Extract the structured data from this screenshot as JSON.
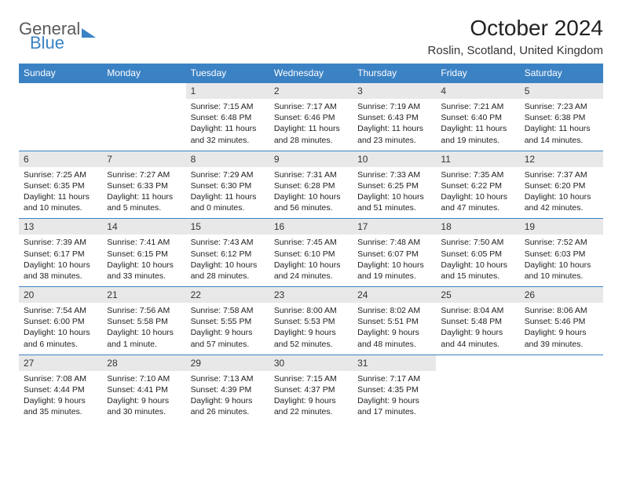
{
  "logo": {
    "word1": "General",
    "word2": "Blue"
  },
  "title": "October 2024",
  "location": "Roslin, Scotland, United Kingdom",
  "colors": {
    "header_bg": "#3b82c4",
    "daynum_bg": "#e8e8e8",
    "border": "#3b82c4"
  },
  "day_headers": [
    "Sunday",
    "Monday",
    "Tuesday",
    "Wednesday",
    "Thursday",
    "Friday",
    "Saturday"
  ],
  "weeks": [
    [
      {
        "n": "",
        "empty": true
      },
      {
        "n": "",
        "empty": true
      },
      {
        "n": "1",
        "sunrise": "Sunrise: 7:15 AM",
        "sunset": "Sunset: 6:48 PM",
        "daylight": "Daylight: 11 hours and 32 minutes."
      },
      {
        "n": "2",
        "sunrise": "Sunrise: 7:17 AM",
        "sunset": "Sunset: 6:46 PM",
        "daylight": "Daylight: 11 hours and 28 minutes."
      },
      {
        "n": "3",
        "sunrise": "Sunrise: 7:19 AM",
        "sunset": "Sunset: 6:43 PM",
        "daylight": "Daylight: 11 hours and 23 minutes."
      },
      {
        "n": "4",
        "sunrise": "Sunrise: 7:21 AM",
        "sunset": "Sunset: 6:40 PM",
        "daylight": "Daylight: 11 hours and 19 minutes."
      },
      {
        "n": "5",
        "sunrise": "Sunrise: 7:23 AM",
        "sunset": "Sunset: 6:38 PM",
        "daylight": "Daylight: 11 hours and 14 minutes."
      }
    ],
    [
      {
        "n": "6",
        "sunrise": "Sunrise: 7:25 AM",
        "sunset": "Sunset: 6:35 PM",
        "daylight": "Daylight: 11 hours and 10 minutes."
      },
      {
        "n": "7",
        "sunrise": "Sunrise: 7:27 AM",
        "sunset": "Sunset: 6:33 PM",
        "daylight": "Daylight: 11 hours and 5 minutes."
      },
      {
        "n": "8",
        "sunrise": "Sunrise: 7:29 AM",
        "sunset": "Sunset: 6:30 PM",
        "daylight": "Daylight: 11 hours and 0 minutes."
      },
      {
        "n": "9",
        "sunrise": "Sunrise: 7:31 AM",
        "sunset": "Sunset: 6:28 PM",
        "daylight": "Daylight: 10 hours and 56 minutes."
      },
      {
        "n": "10",
        "sunrise": "Sunrise: 7:33 AM",
        "sunset": "Sunset: 6:25 PM",
        "daylight": "Daylight: 10 hours and 51 minutes."
      },
      {
        "n": "11",
        "sunrise": "Sunrise: 7:35 AM",
        "sunset": "Sunset: 6:22 PM",
        "daylight": "Daylight: 10 hours and 47 minutes."
      },
      {
        "n": "12",
        "sunrise": "Sunrise: 7:37 AM",
        "sunset": "Sunset: 6:20 PM",
        "daylight": "Daylight: 10 hours and 42 minutes."
      }
    ],
    [
      {
        "n": "13",
        "sunrise": "Sunrise: 7:39 AM",
        "sunset": "Sunset: 6:17 PM",
        "daylight": "Daylight: 10 hours and 38 minutes."
      },
      {
        "n": "14",
        "sunrise": "Sunrise: 7:41 AM",
        "sunset": "Sunset: 6:15 PM",
        "daylight": "Daylight: 10 hours and 33 minutes."
      },
      {
        "n": "15",
        "sunrise": "Sunrise: 7:43 AM",
        "sunset": "Sunset: 6:12 PM",
        "daylight": "Daylight: 10 hours and 28 minutes."
      },
      {
        "n": "16",
        "sunrise": "Sunrise: 7:45 AM",
        "sunset": "Sunset: 6:10 PM",
        "daylight": "Daylight: 10 hours and 24 minutes."
      },
      {
        "n": "17",
        "sunrise": "Sunrise: 7:48 AM",
        "sunset": "Sunset: 6:07 PM",
        "daylight": "Daylight: 10 hours and 19 minutes."
      },
      {
        "n": "18",
        "sunrise": "Sunrise: 7:50 AM",
        "sunset": "Sunset: 6:05 PM",
        "daylight": "Daylight: 10 hours and 15 minutes."
      },
      {
        "n": "19",
        "sunrise": "Sunrise: 7:52 AM",
        "sunset": "Sunset: 6:03 PM",
        "daylight": "Daylight: 10 hours and 10 minutes."
      }
    ],
    [
      {
        "n": "20",
        "sunrise": "Sunrise: 7:54 AM",
        "sunset": "Sunset: 6:00 PM",
        "daylight": "Daylight: 10 hours and 6 minutes."
      },
      {
        "n": "21",
        "sunrise": "Sunrise: 7:56 AM",
        "sunset": "Sunset: 5:58 PM",
        "daylight": "Daylight: 10 hours and 1 minute."
      },
      {
        "n": "22",
        "sunrise": "Sunrise: 7:58 AM",
        "sunset": "Sunset: 5:55 PM",
        "daylight": "Daylight: 9 hours and 57 minutes."
      },
      {
        "n": "23",
        "sunrise": "Sunrise: 8:00 AM",
        "sunset": "Sunset: 5:53 PM",
        "daylight": "Daylight: 9 hours and 52 minutes."
      },
      {
        "n": "24",
        "sunrise": "Sunrise: 8:02 AM",
        "sunset": "Sunset: 5:51 PM",
        "daylight": "Daylight: 9 hours and 48 minutes."
      },
      {
        "n": "25",
        "sunrise": "Sunrise: 8:04 AM",
        "sunset": "Sunset: 5:48 PM",
        "daylight": "Daylight: 9 hours and 44 minutes."
      },
      {
        "n": "26",
        "sunrise": "Sunrise: 8:06 AM",
        "sunset": "Sunset: 5:46 PM",
        "daylight": "Daylight: 9 hours and 39 minutes."
      }
    ],
    [
      {
        "n": "27",
        "sunrise": "Sunrise: 7:08 AM",
        "sunset": "Sunset: 4:44 PM",
        "daylight": "Daylight: 9 hours and 35 minutes."
      },
      {
        "n": "28",
        "sunrise": "Sunrise: 7:10 AM",
        "sunset": "Sunset: 4:41 PM",
        "daylight": "Daylight: 9 hours and 30 minutes."
      },
      {
        "n": "29",
        "sunrise": "Sunrise: 7:13 AM",
        "sunset": "Sunset: 4:39 PM",
        "daylight": "Daylight: 9 hours and 26 minutes."
      },
      {
        "n": "30",
        "sunrise": "Sunrise: 7:15 AM",
        "sunset": "Sunset: 4:37 PM",
        "daylight": "Daylight: 9 hours and 22 minutes."
      },
      {
        "n": "31",
        "sunrise": "Sunrise: 7:17 AM",
        "sunset": "Sunset: 4:35 PM",
        "daylight": "Daylight: 9 hours and 17 minutes."
      },
      {
        "n": "",
        "empty": true
      },
      {
        "n": "",
        "empty": true
      }
    ]
  ]
}
